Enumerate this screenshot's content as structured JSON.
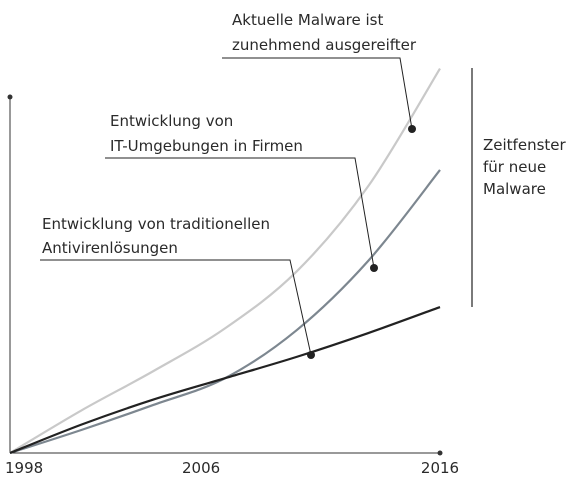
{
  "chart_data": {
    "type": "line",
    "x": [
      1998,
      2001,
      2004,
      2007,
      2010,
      2013,
      2016
    ],
    "xlim": [
      1998,
      2016
    ],
    "xticks": [
      1998,
      2006,
      2016
    ],
    "ylim": [
      0,
      100
    ],
    "series": [
      {
        "name": "Aktuelle Malware ist zunehmend ausgereifter",
        "color": "#c9c9c9",
        "values": [
          0,
          12,
          23,
          35,
          51,
          75,
          108
        ]
      },
      {
        "name": "Entwicklung von IT-Umgebungen in Firmen",
        "color": "#7d8790",
        "values": [
          0,
          6.5,
          13.5,
          21,
          34.5,
          54,
          79.5
        ]
      },
      {
        "name": "Entwicklung von traditionellen Antivirenlösungen",
        "color": "#222222",
        "values": [
          0,
          8,
          15,
          21,
          27,
          33.7,
          41
        ]
      }
    ],
    "annotations": [
      {
        "lines": [
          "Aktuelle Malware ist",
          "zunehmend ausgereifter"
        ]
      },
      {
        "lines": [
          "Entwicklung von",
          "IT-Umgebungen in Firmen"
        ]
      },
      {
        "lines": [
          "Entwicklung von traditionellen",
          "Antivirenlösungen"
        ]
      },
      {
        "lines": [
          "Zeitfenster",
          "für neue",
          "Malware"
        ]
      }
    ]
  }
}
